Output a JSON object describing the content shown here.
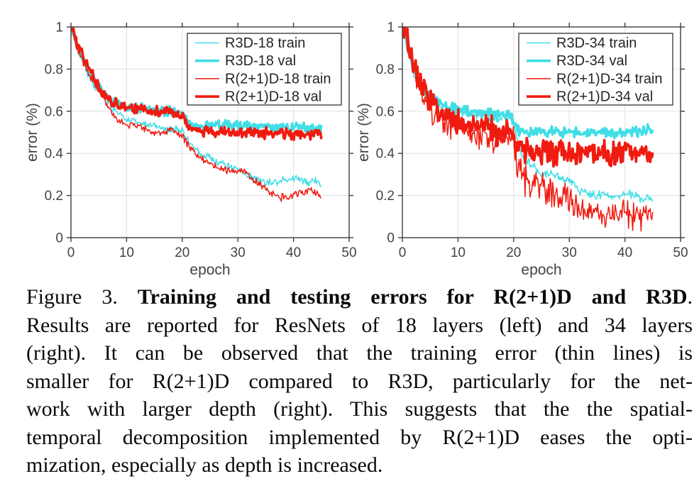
{
  "figure": {
    "caption": {
      "lines": [
        {
          "parts": [
            {
              "t": "Figure 3. ",
              "b": false
            },
            {
              "t": "Training and testing errors for R(2+1)D and R3D",
              "b": true
            },
            {
              "t": ".",
              "b": false
            }
          ]
        },
        {
          "parts": [
            {
              "t": "Results are reported for ResNets of 18 layers (left) and 34 layers",
              "b": false
            }
          ]
        },
        {
          "parts": [
            {
              "t": "(right). It can be observed that the training error (thin lines) is",
              "b": false
            }
          ]
        },
        {
          "parts": [
            {
              "t": "smaller for R(2+1)D compared to R3D, particularly for the net-",
              "b": false
            }
          ]
        },
        {
          "parts": [
            {
              "t": "work with larger depth (right). This suggests that the the spatial-",
              "b": false
            }
          ]
        },
        {
          "parts": [
            {
              "t": "temporal decomposition implemented by R(2+1)D eases the opti-",
              "b": false
            }
          ]
        },
        {
          "parts": [
            {
              "t": "mization, especially as depth is increased.",
              "b": false
            }
          ]
        }
      ]
    }
  },
  "colors": {
    "cyan": "#41DEE6",
    "red": "#F01B10",
    "axis": "#3c3c3c",
    "grid": "#e0e0e0",
    "tick_text": "#434343",
    "legend_border": "#4d4d4d",
    "legend_text": "#262626",
    "background": "#ffffff"
  },
  "chart_data": [
    {
      "type": "line",
      "title": "",
      "xlabel": "epoch",
      "ylabel": "error (%)",
      "xlim": [
        0,
        50
      ],
      "ylim": [
        0,
        1
      ],
      "xticks": [
        0,
        10,
        20,
        30,
        40,
        50
      ],
      "yticks": [
        0,
        0.2,
        0.4,
        0.6,
        0.8,
        1
      ],
      "ytick_labels": [
        "0",
        "0.2",
        "0.4",
        "0.6",
        "0.8",
        "1"
      ],
      "grid": true,
      "legend_position": "top-right",
      "x_step": 1,
      "series": [
        {
          "name": "R3D-18 train",
          "color": "cyan",
          "weight": "thin",
          "noise": 0.012,
          "values": [
            1.0,
            0.9,
            0.84,
            0.78,
            0.73,
            0.69,
            0.66,
            0.63,
            0.6,
            0.58,
            0.56,
            0.55,
            0.545,
            0.54,
            0.535,
            0.53,
            0.525,
            0.52,
            0.52,
            0.515,
            0.51,
            0.46,
            0.43,
            0.41,
            0.39,
            0.375,
            0.36,
            0.35,
            0.34,
            0.335,
            0.325,
            0.305,
            0.29,
            0.28,
            0.27,
            0.26,
            0.27,
            0.26,
            0.27,
            0.27,
            0.28,
            0.275,
            0.265,
            0.26,
            0.27,
            0.25
          ]
        },
        {
          "name": "R3D-18 val",
          "color": "cyan",
          "weight": "thick",
          "noise": 0.016,
          "values": [
            1.0,
            0.92,
            0.86,
            0.8,
            0.75,
            0.71,
            0.68,
            0.65,
            0.635,
            0.625,
            0.61,
            0.61,
            0.61,
            0.615,
            0.605,
            0.6,
            0.6,
            0.595,
            0.6,
            0.595,
            0.585,
            0.545,
            0.535,
            0.53,
            0.535,
            0.54,
            0.53,
            0.53,
            0.54,
            0.53,
            0.53,
            0.525,
            0.53,
            0.53,
            0.525,
            0.53,
            0.52,
            0.52,
            0.53,
            0.52,
            0.52,
            0.53,
            0.52,
            0.52,
            0.52,
            0.515
          ]
        },
        {
          "name": "R(2+1)D-18 train",
          "color": "red",
          "weight": "thin",
          "noise": 0.012,
          "values": [
            1.0,
            0.91,
            0.85,
            0.79,
            0.74,
            0.7,
            0.66,
            0.6,
            0.57,
            0.55,
            0.535,
            0.53,
            0.525,
            0.52,
            0.51,
            0.5,
            0.5,
            0.505,
            0.51,
            0.495,
            0.485,
            0.44,
            0.41,
            0.39,
            0.37,
            0.355,
            0.34,
            0.33,
            0.32,
            0.32,
            0.315,
            0.32,
            0.3,
            0.27,
            0.25,
            0.23,
            0.215,
            0.2,
            0.19,
            0.195,
            0.2,
            0.21,
            0.22,
            0.23,
            0.21,
            0.2
          ]
        },
        {
          "name": "R(2+1)D-18 val",
          "color": "red",
          "weight": "thick",
          "noise": 0.017,
          "values": [
            1.0,
            0.93,
            0.87,
            0.81,
            0.76,
            0.72,
            0.68,
            0.65,
            0.635,
            0.625,
            0.615,
            0.61,
            0.615,
            0.61,
            0.605,
            0.6,
            0.595,
            0.59,
            0.595,
            0.59,
            0.575,
            0.525,
            0.51,
            0.505,
            0.51,
            0.5,
            0.5,
            0.505,
            0.5,
            0.5,
            0.5,
            0.495,
            0.5,
            0.5,
            0.49,
            0.495,
            0.49,
            0.49,
            0.495,
            0.49,
            0.49,
            0.495,
            0.49,
            0.488,
            0.49,
            0.488
          ]
        }
      ]
    },
    {
      "type": "line",
      "title": "",
      "xlabel": "epoch",
      "ylabel": "error (%)",
      "xlim": [
        0,
        50
      ],
      "ylim": [
        0,
        1
      ],
      "xticks": [
        0,
        10,
        20,
        30,
        40,
        50
      ],
      "yticks": [
        0,
        0.2,
        0.4,
        0.6,
        0.8,
        1
      ],
      "ytick_labels": [
        "0",
        "0.2",
        "0.4",
        "0.6",
        "0.8",
        "1"
      ],
      "grid": true,
      "legend_position": "top-right",
      "x_step": 1,
      "series": [
        {
          "name": "R3D-34 train",
          "color": "cyan",
          "weight": "thin",
          "noise": 0.014,
          "values": [
            1.0,
            0.88,
            0.77,
            0.72,
            0.68,
            0.655,
            0.635,
            0.62,
            0.61,
            0.6,
            0.6,
            0.595,
            0.59,
            0.585,
            0.58,
            0.58,
            0.575,
            0.57,
            0.57,
            0.58,
            0.555,
            0.42,
            0.38,
            0.35,
            0.33,
            0.31,
            0.3,
            0.3,
            0.29,
            0.28,
            0.26,
            0.24,
            0.22,
            0.21,
            0.2,
            0.2,
            0.21,
            0.2,
            0.19,
            0.2,
            0.21,
            0.21,
            0.2,
            0.18,
            0.2,
            0.18
          ]
        },
        {
          "name": "R3D-34 val",
          "color": "cyan",
          "weight": "thick",
          "noise": 0.016,
          "values": [
            1.0,
            0.9,
            0.8,
            0.74,
            0.7,
            0.67,
            0.65,
            0.635,
            0.62,
            0.615,
            0.61,
            0.605,
            0.6,
            0.595,
            0.59,
            0.59,
            0.585,
            0.58,
            0.58,
            0.59,
            0.555,
            0.51,
            0.5,
            0.5,
            0.51,
            0.505,
            0.5,
            0.51,
            0.5,
            0.5,
            0.51,
            0.5,
            0.49,
            0.5,
            0.5,
            0.49,
            0.5,
            0.5,
            0.49,
            0.5,
            0.5,
            0.51,
            0.5,
            0.5,
            0.51,
            0.5
          ]
        },
        {
          "name": "R(2+1)D-34 train",
          "color": "red",
          "weight": "thin",
          "noise": 0.05,
          "values": [
            1.0,
            0.9,
            0.81,
            0.73,
            0.67,
            0.62,
            0.59,
            0.57,
            0.555,
            0.54,
            0.53,
            0.52,
            0.51,
            0.5,
            0.5,
            0.49,
            0.47,
            0.46,
            0.47,
            0.48,
            0.44,
            0.32,
            0.28,
            0.26,
            0.25,
            0.24,
            0.23,
            0.22,
            0.21,
            0.2,
            0.18,
            0.15,
            0.13,
            0.13,
            0.12,
            0.12,
            0.11,
            0.11,
            0.1,
            0.105,
            0.12,
            0.11,
            0.11,
            0.12,
            0.11,
            0.1
          ]
        },
        {
          "name": "R(2+1)D-34 val",
          "color": "red",
          "weight": "thick",
          "noise": 0.04,
          "values": [
            1.0,
            0.92,
            0.83,
            0.75,
            0.69,
            0.645,
            0.615,
            0.595,
            0.575,
            0.56,
            0.55,
            0.545,
            0.535,
            0.53,
            0.525,
            0.52,
            0.51,
            0.5,
            0.51,
            0.52,
            0.47,
            0.43,
            0.42,
            0.41,
            0.41,
            0.4,
            0.41,
            0.4,
            0.4,
            0.41,
            0.4,
            0.39,
            0.4,
            0.4,
            0.41,
            0.4,
            0.4,
            0.39,
            0.4,
            0.4,
            0.41,
            0.4,
            0.4,
            0.41,
            0.4,
            0.4
          ]
        }
      ]
    }
  ]
}
